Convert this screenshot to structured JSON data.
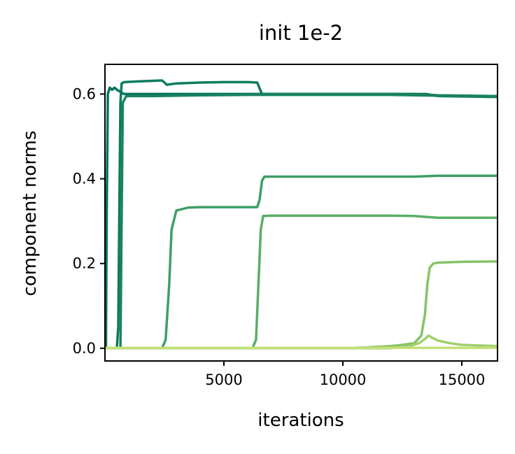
{
  "chart_data": {
    "type": "line",
    "title": "init 1e-2",
    "xlabel": "iterations",
    "ylabel": "component norms",
    "xlim": [
      0,
      16500
    ],
    "ylim": [
      -0.03,
      0.67
    ],
    "xticks": [
      5000,
      10000,
      15000
    ],
    "xtick_labels": [
      "5000",
      "10000",
      "15000"
    ],
    "yticks": [
      0.0,
      0.2,
      0.4,
      0.6
    ],
    "ytick_labels": [
      "0.0",
      "0.2",
      "0.4",
      "0.6"
    ],
    "grid": false,
    "legend": "none",
    "series": [
      {
        "color": "#00725e",
        "x": [
          0,
          40,
          70,
          120,
          200,
          300,
          400,
          500,
          800,
          2000,
          6000,
          12000,
          13000,
          14000,
          16500
        ],
        "y": [
          0.0,
          0.0,
          0.3,
          0.6,
          0.615,
          0.61,
          0.615,
          0.61,
          0.6,
          0.6,
          0.6,
          0.6,
          0.6,
          0.597,
          0.595
        ]
      },
      {
        "color": "#0b7c5d",
        "x": [
          0,
          500,
          560,
          600,
          650,
          700,
          800,
          1500,
          2400,
          2600,
          3000,
          4000,
          5000,
          6000,
          6400,
          6600,
          8000,
          12000,
          13000,
          13500,
          14000,
          16500
        ],
        "y": [
          0.0,
          0.0,
          0.05,
          0.3,
          0.58,
          0.625,
          0.628,
          0.63,
          0.632,
          0.622,
          0.625,
          0.627,
          0.628,
          0.628,
          0.627,
          0.6,
          0.6,
          0.6,
          0.6,
          0.6,
          0.595,
          0.593
        ]
      },
      {
        "color": "#1a8360",
        "x": [
          0,
          650,
          700,
          750,
          900,
          2000,
          4000,
          6000,
          8000,
          12000,
          14000,
          16500
        ],
        "y": [
          0.0,
          0.0,
          0.3,
          0.58,
          0.595,
          0.595,
          0.597,
          0.598,
          0.598,
          0.598,
          0.596,
          0.595
        ]
      },
      {
        "color": "#3f9e67",
        "x": [
          0,
          2400,
          2550,
          2700,
          2800,
          3000,
          3500,
          4000,
          5000,
          6000,
          6400,
          6500,
          6600,
          6700,
          7000,
          8000,
          10000,
          12000,
          13000,
          14000,
          15000,
          16500
        ],
        "y": [
          0.0,
          0.0,
          0.02,
          0.15,
          0.28,
          0.325,
          0.332,
          0.333,
          0.333,
          0.333,
          0.333,
          0.35,
          0.395,
          0.405,
          0.405,
          0.405,
          0.405,
          0.405,
          0.405,
          0.407,
          0.407,
          0.407
        ]
      },
      {
        "color": "#59ae68",
        "x": [
          0,
          6200,
          6350,
          6450,
          6550,
          6650,
          7000,
          8000,
          10000,
          12000,
          13000,
          13500,
          14000,
          16500
        ],
        "y": [
          0.0,
          0.0,
          0.02,
          0.15,
          0.28,
          0.312,
          0.313,
          0.313,
          0.313,
          0.313,
          0.312,
          0.31,
          0.308,
          0.308
        ]
      },
      {
        "color": "#86c367",
        "x": [
          0,
          8000,
          10000,
          11000,
          12000,
          12500,
          13000,
          13300,
          13450,
          13550,
          13650,
          13800,
          14000,
          15000,
          16500
        ],
        "y": [
          0.0,
          0.0,
          0.0,
          0.002,
          0.005,
          0.008,
          0.012,
          0.03,
          0.08,
          0.15,
          0.19,
          0.2,
          0.202,
          0.204,
          0.205
        ]
      },
      {
        "color": "#9fd06c",
        "x": [
          0,
          12000,
          12800,
          13200,
          13450,
          13600,
          13750,
          14000,
          14500,
          15000,
          16500
        ],
        "y": [
          0.0,
          0.0,
          0.005,
          0.012,
          0.022,
          0.03,
          0.025,
          0.018,
          0.012,
          0.008,
          0.005
        ]
      },
      {
        "color": "#c4e07a",
        "x": [
          0,
          16500
        ],
        "y": [
          0.001,
          0.001
        ]
      }
    ]
  }
}
